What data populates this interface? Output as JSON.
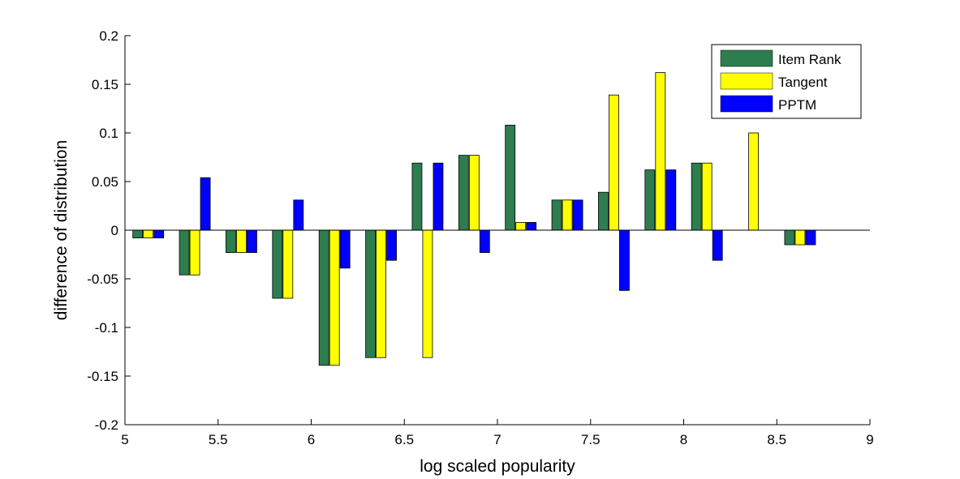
{
  "chart_data": {
    "type": "bar",
    "title": "",
    "xlabel": "log scaled popularity",
    "ylabel": "difference of distribution",
    "xlim": [
      5,
      9
    ],
    "ylim": [
      -0.2,
      0.2
    ],
    "x_ticks": [
      "5",
      "5.5",
      "6",
      "6.5",
      "7",
      "7.5",
      "8",
      "8.5",
      "9"
    ],
    "y_ticks": [
      "0.2",
      "0.15",
      "0.1",
      "0.05",
      "0",
      "-0.05",
      "-0.1",
      "-0.15",
      "-0.2"
    ],
    "x_tick_values": [
      5,
      5.5,
      6,
      6.5,
      7,
      7.5,
      8,
      8.5,
      9
    ],
    "y_tick_values": [
      0.2,
      0.15,
      0.1,
      0.05,
      0,
      -0.05,
      -0.1,
      -0.15,
      -0.2
    ],
    "x": [
      5.125,
      5.375,
      5.625,
      5.875,
      6.125,
      6.375,
      6.625,
      6.875,
      7.125,
      7.375,
      7.625,
      7.875,
      8.125,
      8.375,
      8.625
    ],
    "series": [
      {
        "name": "Item Rank",
        "color": "#2e7d4f",
        "values": [
          -0.008,
          -0.046,
          -0.023,
          -0.07,
          -0.139,
          -0.131,
          0.069,
          0.077,
          0.108,
          0.031,
          0.039,
          0.062,
          0.069,
          0,
          -0.015
        ]
      },
      {
        "name": "Tangent",
        "color": "#ffff00",
        "values": [
          -0.008,
          -0.046,
          -0.023,
          -0.07,
          -0.139,
          -0.131,
          -0.131,
          0.077,
          0.008,
          0.031,
          0.139,
          0.162,
          0.069,
          0.1,
          -0.015
        ]
      },
      {
        "name": "PPTM",
        "color": "#0000ff",
        "values": [
          -0.008,
          0.054,
          -0.023,
          0.031,
          -0.039,
          -0.031,
          0.069,
          -0.023,
          0.008,
          0.031,
          -0.062,
          0.062,
          -0.031,
          0,
          -0.015
        ]
      }
    ],
    "legend_position": "top-right",
    "grid": false
  }
}
